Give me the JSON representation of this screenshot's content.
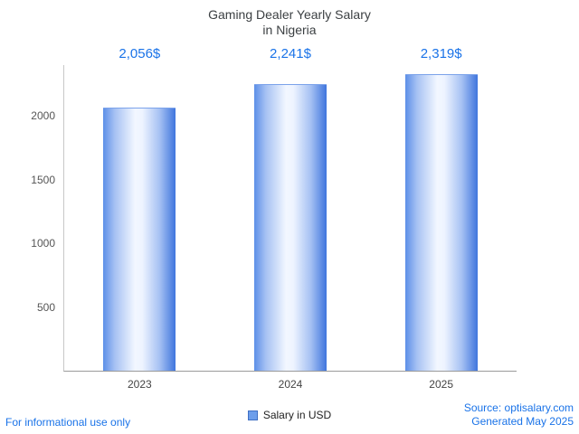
{
  "title": {
    "line1": "Gaming Dealer Yearly Salary",
    "line2": "in Nigeria"
  },
  "chart_data": {
    "type": "bar",
    "title": "Gaming Dealer Yearly Salary in Nigeria",
    "categories": [
      "2023",
      "2024",
      "2025"
    ],
    "values": [
      2056,
      2241,
      2319
    ],
    "value_labels": [
      "2,056$",
      "2,241$",
      "2,319$"
    ],
    "series_name": "Salary in USD",
    "xlabel": "",
    "ylabel": "",
    "ylim": [
      0,
      2400
    ],
    "yticks": [
      500,
      1000,
      1500,
      2000
    ],
    "grid": false,
    "legend_position": "bottom",
    "bar_color": "#6d9eeb",
    "value_label_color": "#1a73e8"
  },
  "legend": {
    "label": "Salary in USD"
  },
  "footer": {
    "left": "For informational use only",
    "source": "Source: optisalary.com",
    "generated": "Generated May 2025"
  },
  "colors": {
    "accent_blue": "#1a73e8"
  }
}
